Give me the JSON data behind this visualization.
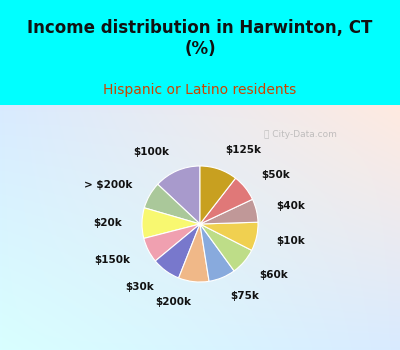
{
  "title": "Income distribution in Harwinton, CT\n(%)",
  "subtitle": "Hispanic or Latino residents",
  "title_color": "#111111",
  "subtitle_color": "#cc4400",
  "bg_color": "#00ffff",
  "watermark": "ⓘ City-Data.com",
  "labels": [
    "$100k",
    "> $200k",
    "$20k",
    "$150k",
    "$30k",
    "$200k",
    "$75k",
    "$60k",
    "$10k",
    "$40k",
    "$50k",
    "$125k"
  ],
  "values": [
    13.0,
    7.5,
    8.5,
    7.0,
    8.0,
    8.5,
    7.5,
    7.5,
    8.0,
    6.5,
    7.5,
    10.5
  ],
  "colors": [
    "#a89acc",
    "#aac89a",
    "#f8f870",
    "#f0a0b0",
    "#7878cc",
    "#f0b888",
    "#88aadd",
    "#bedd88",
    "#f0d050",
    "#c09898",
    "#e07878",
    "#c8a020"
  ],
  "label_distance": 1.35,
  "start_angle": 90,
  "title_fontsize": 12,
  "subtitle_fontsize": 10,
  "label_fontsize": 7.5
}
